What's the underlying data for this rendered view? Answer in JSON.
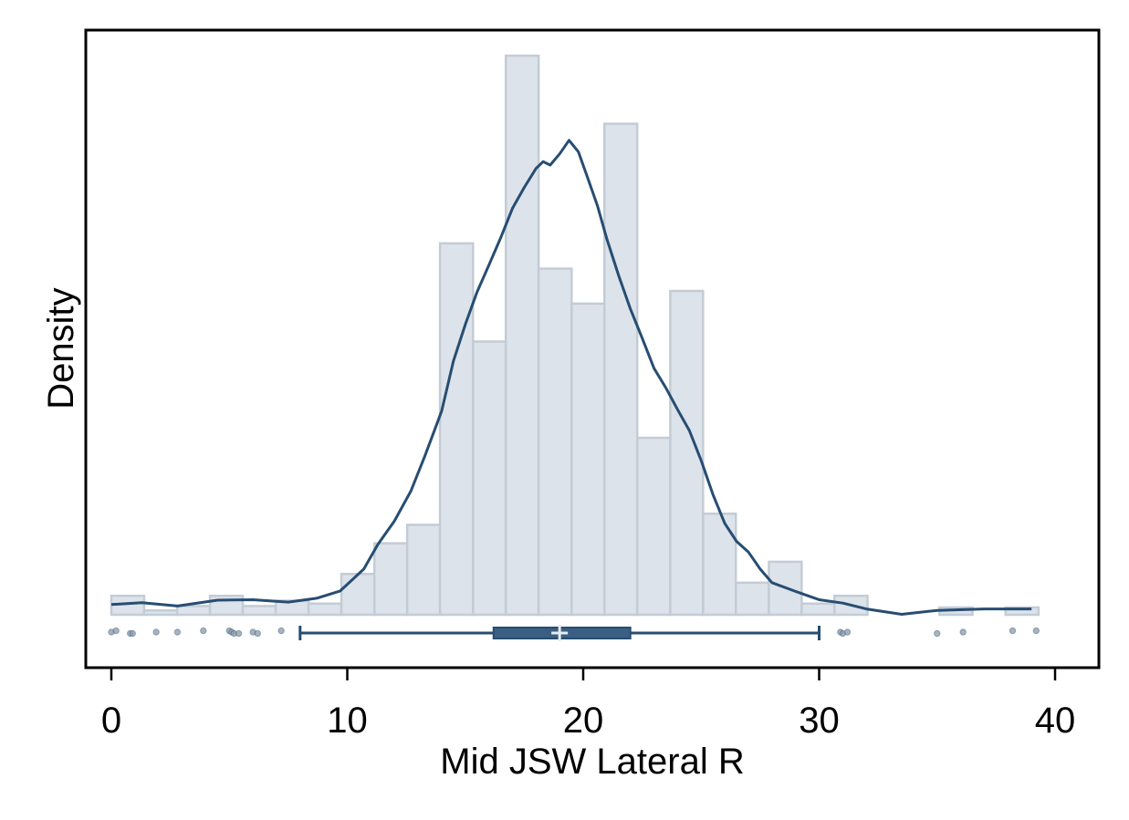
{
  "chart_data": {
    "type": "histogram",
    "xlabel": "Mid JSW Lateral R",
    "ylabel": "Density",
    "xlim": [
      -1.1,
      40.9
    ],
    "xticks": [
      0,
      10,
      20,
      30,
      40
    ],
    "grid": false,
    "colors": {
      "bar_fill": "#dde3ea",
      "bar_stroke": "#c3ccd6",
      "line": "#274d72",
      "point": "#8a9aaa",
      "background": "#ffffff"
    },
    "histogram": {
      "bin_width": 1.39,
      "bins": [
        {
          "x0": 0.0,
          "x1": 1.39,
          "value": 0.0039
        },
        {
          "x0": 1.39,
          "x1": 2.79,
          "value": 0.0009
        },
        {
          "x0": 2.79,
          "x1": 4.18,
          "value": 0.0018
        },
        {
          "x0": 4.18,
          "x1": 5.57,
          "value": 0.0039
        },
        {
          "x0": 5.57,
          "x1": 6.97,
          "value": 0.0018
        },
        {
          "x0": 6.97,
          "x1": 8.36,
          "value": 0.0029
        },
        {
          "x0": 8.36,
          "x1": 9.75,
          "value": 0.0023
        },
        {
          "x0": 9.75,
          "x1": 11.15,
          "value": 0.0084
        },
        {
          "x0": 11.15,
          "x1": 12.54,
          "value": 0.0147
        },
        {
          "x0": 12.54,
          "x1": 13.93,
          "value": 0.0185
        },
        {
          "x0": 13.93,
          "x1": 15.33,
          "value": 0.0764
        },
        {
          "x0": 15.33,
          "x1": 16.72,
          "value": 0.0562
        },
        {
          "x0": 16.72,
          "x1": 18.11,
          "value": 0.115
        },
        {
          "x0": 18.11,
          "x1": 19.51,
          "value": 0.0712
        },
        {
          "x0": 19.51,
          "x1": 20.9,
          "value": 0.064
        },
        {
          "x0": 20.9,
          "x1": 22.29,
          "value": 0.101
        },
        {
          "x0": 22.29,
          "x1": 23.69,
          "value": 0.0364
        },
        {
          "x0": 23.69,
          "x1": 25.08,
          "value": 0.0666
        },
        {
          "x0": 25.08,
          "x1": 26.47,
          "value": 0.0208
        },
        {
          "x0": 26.47,
          "x1": 27.87,
          "value": 0.0066
        },
        {
          "x0": 27.87,
          "x1": 29.26,
          "value": 0.0109
        },
        {
          "x0": 29.26,
          "x1": 30.65,
          "value": 0.0023
        },
        {
          "x0": 30.65,
          "x1": 32.05,
          "value": 0.0039
        },
        {
          "x0": 35.1,
          "x1": 36.5,
          "value": 0.0015
        },
        {
          "x0": 37.9,
          "x1": 39.3,
          "value": 0.0015
        }
      ]
    },
    "density": {
      "x": [
        0.0,
        1.3,
        2.8,
        4.5,
        6.0,
        7.5,
        8.7,
        9.7,
        10.7,
        11.3,
        12.0,
        12.7,
        13.3,
        14.0,
        14.5,
        15.0,
        15.5,
        16.0,
        16.5,
        17.0,
        17.5,
        18.0,
        18.3,
        18.6,
        19.0,
        19.4,
        19.8,
        20.2,
        20.6,
        21.0,
        21.5,
        22.0,
        22.5,
        23.0,
        23.5,
        24.0,
        24.5,
        25.0,
        25.5,
        26.0,
        26.5,
        27.0,
        27.5,
        28.0,
        29.0,
        30.0,
        31.0,
        32.0,
        33.5,
        35.0,
        37.0,
        39.0
      ],
      "y": [
        0.0021,
        0.0025,
        0.0018,
        0.003,
        0.0031,
        0.0026,
        0.0034,
        0.0049,
        0.0094,
        0.0145,
        0.0193,
        0.0255,
        0.0328,
        0.0419,
        0.0522,
        0.0597,
        0.0664,
        0.0719,
        0.0775,
        0.0836,
        0.0879,
        0.0918,
        0.0932,
        0.0925,
        0.0948,
        0.0976,
        0.0952,
        0.0897,
        0.0842,
        0.0773,
        0.0698,
        0.0629,
        0.0569,
        0.0507,
        0.0467,
        0.0422,
        0.0379,
        0.0317,
        0.0247,
        0.0188,
        0.0151,
        0.0129,
        0.0094,
        0.0066,
        0.0048,
        0.0031,
        0.0024,
        0.0012,
        0.0001,
        0.0009,
        0.0012,
        0.0012
      ]
    },
    "boxplot": {
      "whisker_low": 8.0,
      "q1": 16.2,
      "median": 19.0,
      "mean": 19.0,
      "q3": 22.0,
      "whisker_high": 30.0
    },
    "points": {
      "x": [
        0.0,
        0.2,
        0.8,
        0.9,
        1.9,
        2.8,
        3.9,
        5.0,
        5.1,
        5.2,
        5.4,
        6.0,
        6.2,
        7.2,
        30.9,
        31.0,
        31.2,
        35.0,
        36.1,
        38.2,
        39.2
      ],
      "offset": [
        0,
        -1,
        1,
        1,
        0,
        0,
        -1,
        -1,
        0,
        1,
        1,
        0,
        1,
        -1,
        0,
        1,
        0,
        1,
        0,
        -1,
        -1
      ]
    }
  }
}
